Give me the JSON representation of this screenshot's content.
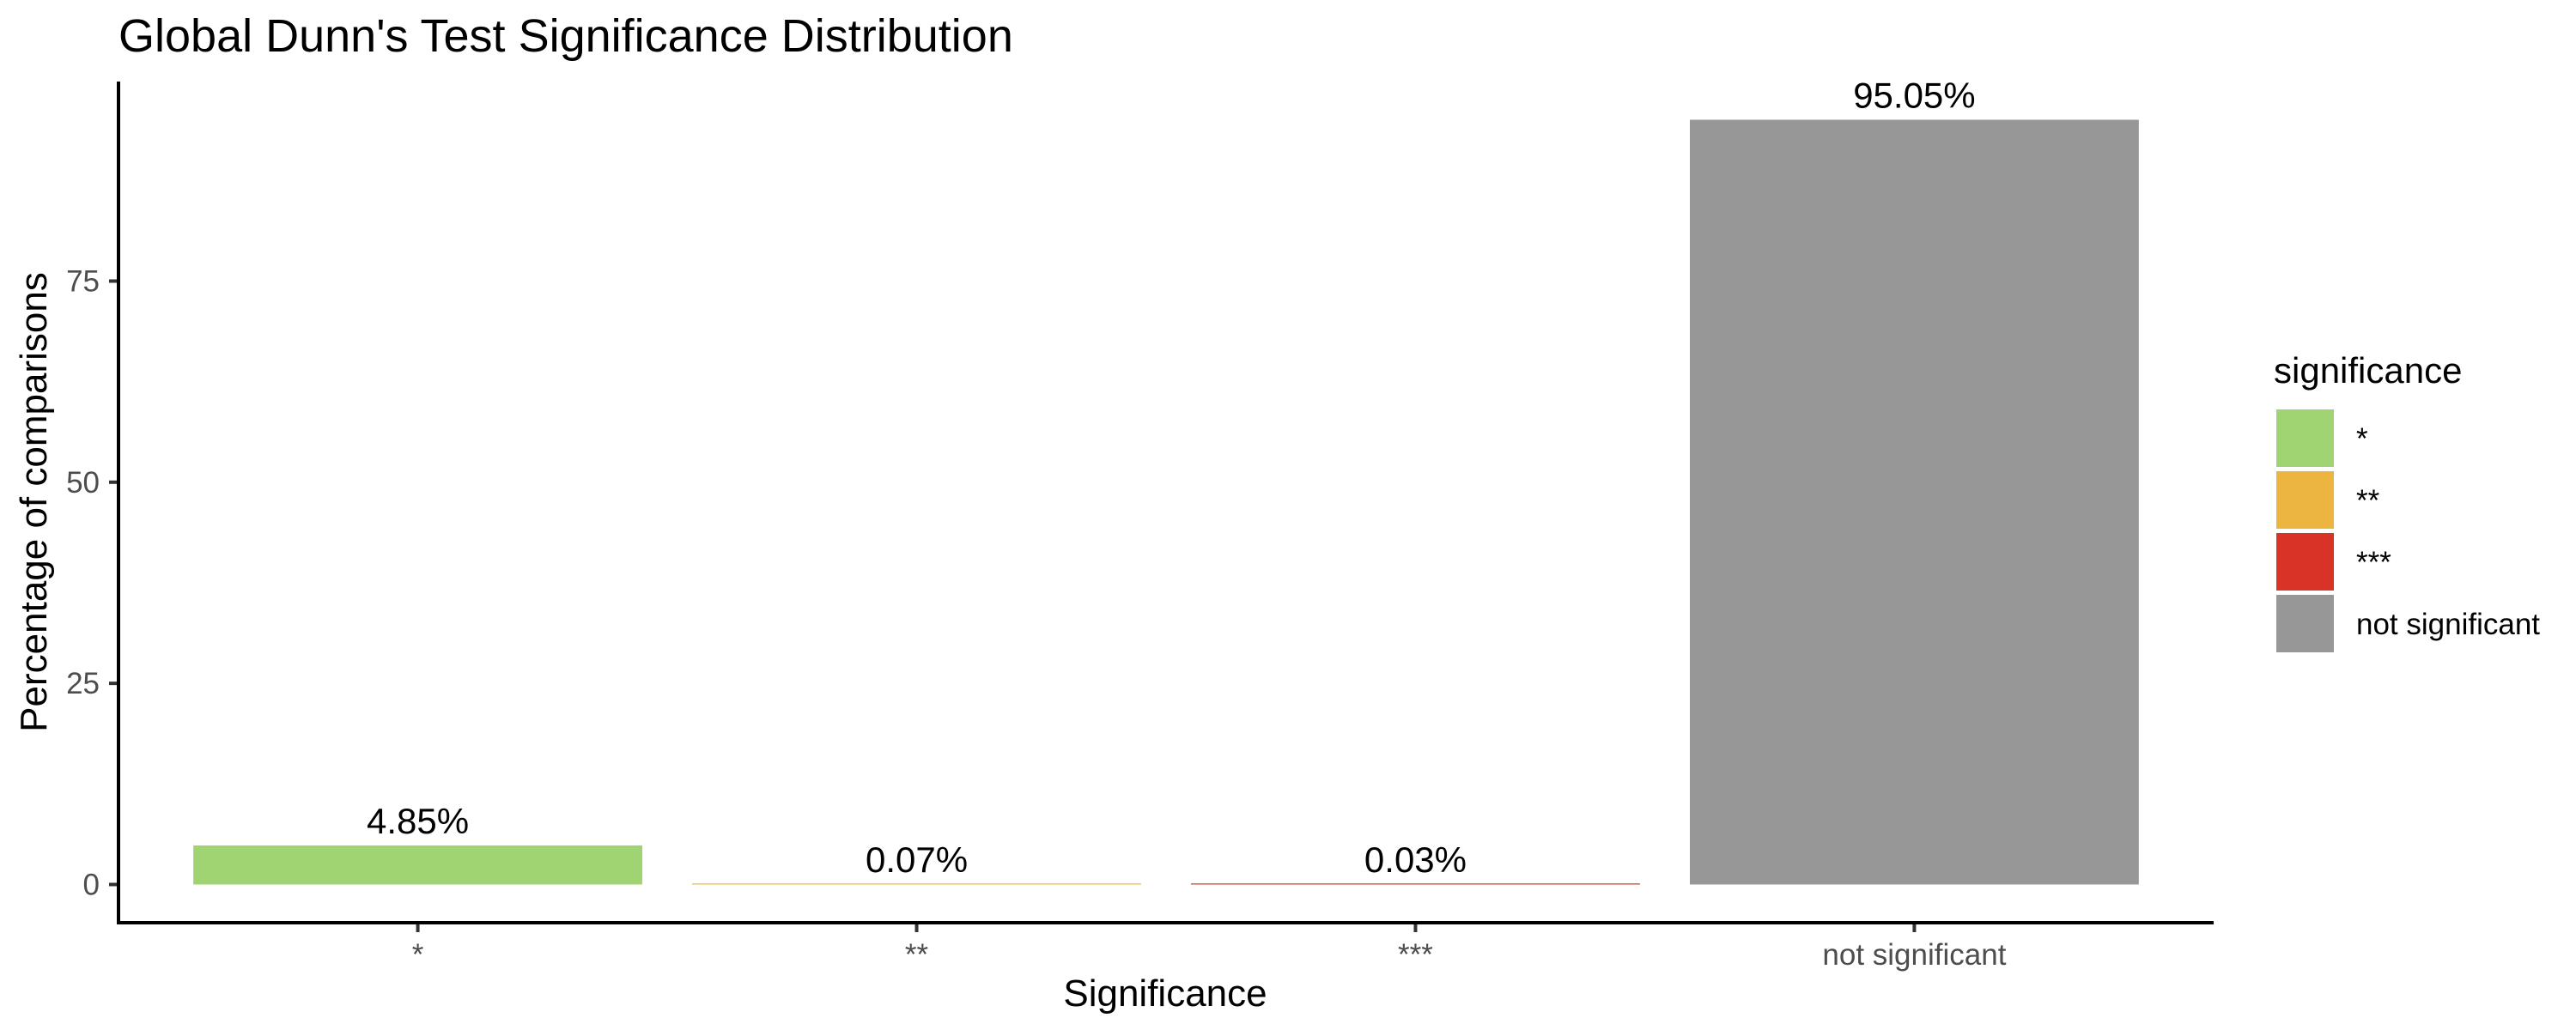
{
  "chart_data": {
    "type": "bar",
    "title": "Global Dunn's Test Significance Distribution",
    "xlabel": "Significance",
    "ylabel": "Percentage of comparisons",
    "categories": [
      "*",
      "**",
      "***",
      "not significant"
    ],
    "values": [
      4.85,
      0.07,
      0.03,
      95.05
    ],
    "bar_labels": [
      "4.85%",
      "0.07%",
      "0.03%",
      "95.05%"
    ],
    "colors": [
      "#a0d372",
      "#ebb53f",
      "#d93226",
      "#979797"
    ],
    "yticks": [
      0,
      25,
      50,
      75
    ],
    "ylim": [
      -4.75,
      99.8
    ],
    "grid": false,
    "legend": {
      "title": "significance",
      "placement": "right",
      "entries": [
        "*",
        "**",
        "***",
        "not significant"
      ]
    }
  }
}
